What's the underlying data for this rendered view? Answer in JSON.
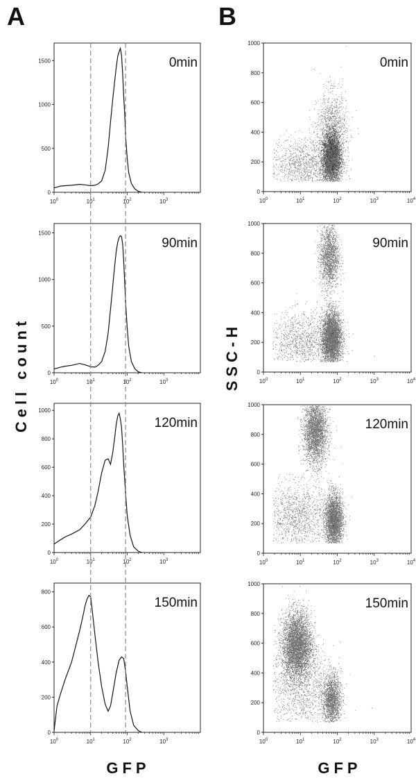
{
  "panel_labels": [
    "A",
    "B"
  ],
  "y_label_left": "Cell count",
  "y_label_right": "SSC-H",
  "x_label": "GFP",
  "chart_data": [
    {
      "type": "line",
      "panel": "A",
      "title": "0min",
      "x_scale": "log",
      "xlim": [
        1,
        10000
      ],
      "ylim": [
        0,
        1700
      ],
      "x_ticks": [
        "10^0",
        "10^1",
        "10^2",
        "10^3"
      ],
      "y_ticks": [
        0,
        500,
        1000,
        1500
      ],
      "reference_lines_x": [
        10,
        90
      ],
      "series": [
        {
          "x": [
            1,
            1.5,
            2,
            3,
            5,
            7,
            10,
            13,
            16,
            20,
            25,
            30,
            35,
            40,
            45,
            50,
            55,
            60,
            65,
            70,
            75,
            80,
            85,
            90,
            100,
            110,
            130,
            160,
            200,
            250
          ],
          "y": [
            50,
            70,
            75,
            80,
            90,
            85,
            75,
            80,
            95,
            130,
            250,
            500,
            800,
            1050,
            1250,
            1420,
            1550,
            1600,
            1640,
            1560,
            1350,
            1100,
            900,
            650,
            380,
            220,
            100,
            40,
            10,
            0
          ]
        }
      ]
    },
    {
      "type": "line",
      "panel": "A",
      "title": "90min",
      "x_scale": "log",
      "xlim": [
        1,
        10000
      ],
      "ylim": [
        0,
        1600
      ],
      "x_ticks": [
        "10^0",
        "10^1",
        "10^2",
        "10^3"
      ],
      "y_ticks": [
        0,
        500,
        1000,
        1500
      ],
      "reference_lines_x": [
        10,
        90
      ],
      "series": [
        {
          "x": [
            1,
            1.5,
            2,
            3,
            5,
            7,
            10,
            13,
            16,
            20,
            25,
            30,
            35,
            40,
            45,
            50,
            55,
            60,
            65,
            70,
            75,
            80,
            85,
            90,
            100,
            110,
            130,
            160,
            200,
            250
          ],
          "y": [
            40,
            60,
            70,
            80,
            100,
            85,
            65,
            60,
            80,
            120,
            230,
            420,
            680,
            920,
            1130,
            1300,
            1400,
            1450,
            1470,
            1460,
            1380,
            1200,
            980,
            760,
            480,
            280,
            120,
            45,
            10,
            0
          ]
        }
      ]
    },
    {
      "type": "line",
      "panel": "A",
      "title": "120min",
      "x_scale": "log",
      "xlim": [
        1,
        10000
      ],
      "ylim": [
        0,
        1050
      ],
      "x_ticks": [
        "10^0",
        "10^1",
        "10^2",
        "10^3"
      ],
      "y_ticks": [
        0,
        200,
        400,
        600,
        800,
        1000
      ],
      "reference_lines_x": [
        10,
        90
      ],
      "series": [
        {
          "x": [
            1,
            1.5,
            2,
            3,
            5,
            7,
            10,
            13,
            16,
            20,
            25,
            30,
            35,
            40,
            45,
            50,
            55,
            60,
            65,
            70,
            75,
            80,
            90,
            100,
            120,
            150,
            200,
            250
          ],
          "y": [
            60,
            90,
            110,
            130,
            160,
            200,
            250,
            330,
            430,
            560,
            650,
            660,
            620,
            700,
            800,
            900,
            960,
            980,
            940,
            880,
            760,
            620,
            420,
            260,
            120,
            40,
            10,
            0
          ]
        }
      ]
    },
    {
      "type": "line",
      "panel": "A",
      "title": "150min",
      "x_scale": "log",
      "xlim": [
        1,
        10000
      ],
      "ylim": [
        0,
        850
      ],
      "x_ticks": [
        "10^0",
        "10^1",
        "10^2",
        "10^3"
      ],
      "y_ticks": [
        0,
        200,
        400,
        600,
        800
      ],
      "reference_lines_x": [
        10,
        90
      ],
      "series": [
        {
          "x": [
            1,
            1.2,
            1.5,
            2,
            3,
            4,
            5,
            6,
            7,
            8,
            9,
            10,
            11,
            13,
            16,
            20,
            25,
            30,
            35,
            40,
            50,
            60,
            70,
            80,
            90,
            100,
            120,
            150,
            200,
            250
          ],
          "y": [
            10,
            150,
            220,
            300,
            400,
            500,
            580,
            650,
            720,
            760,
            780,
            770,
            700,
            560,
            400,
            260,
            160,
            120,
            150,
            220,
            340,
            410,
            430,
            420,
            350,
            260,
            120,
            40,
            10,
            0
          ]
        }
      ]
    },
    {
      "type": "scatter",
      "panel": "B",
      "title": "0min",
      "x_scale": "log",
      "xlim": [
        1,
        10000
      ],
      "ylim": [
        0,
        1000
      ],
      "x_ticks": [
        "10^0",
        "10^1",
        "10^2",
        "10^3",
        "10^4"
      ],
      "y_ticks": [
        0,
        200,
        400,
        600,
        800,
        1000
      ],
      "clusters": [
        {
          "x_center": 70,
          "y_center": 220,
          "x_spread_decades": 0.12,
          "y_spread": 80,
          "weight": 4500
        },
        {
          "x_center": 70,
          "y_center": 380,
          "x_spread_decades": 0.2,
          "y_spread": 140,
          "weight": 1500
        },
        {
          "x_center": 12,
          "y_center": 180,
          "x_spread_decades": 0.45,
          "y_spread": 90,
          "weight": 1200
        }
      ]
    },
    {
      "type": "scatter",
      "panel": "B",
      "title": "90min",
      "x_scale": "log",
      "xlim": [
        1,
        10000
      ],
      "ylim": [
        0,
        1000
      ],
      "x_ticks": [
        "10^0",
        "10^1",
        "10^2",
        "10^3",
        "10^4"
      ],
      "y_ticks": [
        0,
        200,
        400,
        600,
        800,
        1000
      ],
      "clusters": [
        {
          "x_center": 70,
          "y_center": 230,
          "x_spread_decades": 0.13,
          "y_spread": 90,
          "weight": 4200
        },
        {
          "x_center": 60,
          "y_center": 780,
          "x_spread_decades": 0.13,
          "y_spread": 110,
          "weight": 1800
        },
        {
          "x_center": 12,
          "y_center": 200,
          "x_spread_decades": 0.45,
          "y_spread": 100,
          "weight": 1200
        }
      ]
    },
    {
      "type": "scatter",
      "panel": "B",
      "title": "120min",
      "x_scale": "log",
      "xlim": [
        1,
        10000
      ],
      "ylim": [
        0,
        1000
      ],
      "x_ticks": [
        "10^0",
        "10^1",
        "10^2",
        "10^3",
        "10^4"
      ],
      "y_ticks": [
        0,
        200,
        400,
        600,
        800,
        1000
      ],
      "clusters": [
        {
          "x_center": 80,
          "y_center": 220,
          "x_spread_decades": 0.12,
          "y_spread": 90,
          "weight": 3200
        },
        {
          "x_center": 25,
          "y_center": 820,
          "x_spread_decades": 0.16,
          "y_spread": 110,
          "weight": 3000
        },
        {
          "x_center": 8,
          "y_center": 250,
          "x_spread_decades": 0.45,
          "y_spread": 110,
          "weight": 1300
        }
      ]
    },
    {
      "type": "scatter",
      "panel": "B",
      "title": "150min",
      "x_scale": "log",
      "xlim": [
        1,
        10000
      ],
      "ylim": [
        0,
        1000
      ],
      "x_ticks": [
        "10^0",
        "10^1",
        "10^2",
        "10^3",
        "10^4"
      ],
      "y_ticks": [
        0,
        200,
        400,
        600,
        800,
        1000
      ],
      "clusters": [
        {
          "x_center": 8,
          "y_center": 590,
          "x_spread_decades": 0.2,
          "y_spread": 110,
          "weight": 4500
        },
        {
          "x_center": 70,
          "y_center": 220,
          "x_spread_decades": 0.12,
          "y_spread": 90,
          "weight": 1800
        },
        {
          "x_center": 10,
          "y_center": 300,
          "x_spread_decades": 0.45,
          "y_spread": 150,
          "weight": 1300
        }
      ]
    }
  ]
}
